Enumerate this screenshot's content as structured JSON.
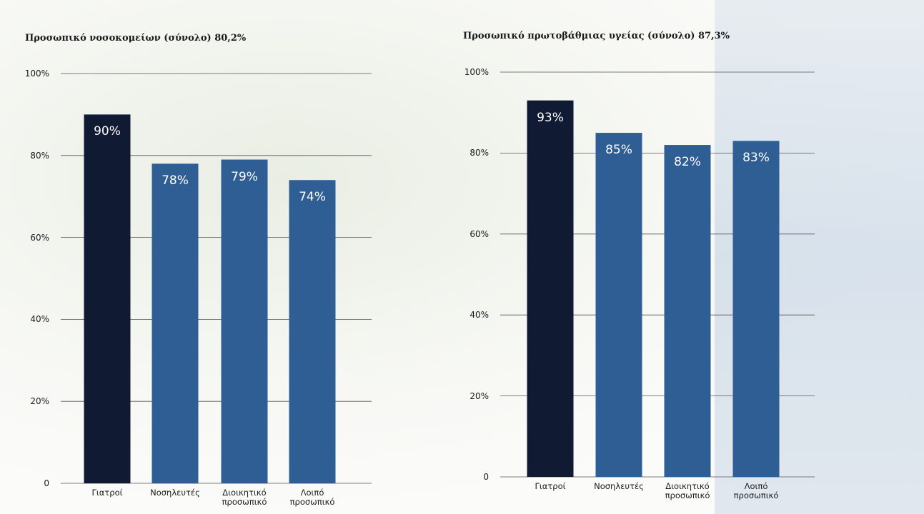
{
  "chart_data": [
    {
      "type": "bar",
      "title": "Προσωπικό νοσοκομείων (σύνολο) 80,2%",
      "categories": [
        "Γιατροί",
        "Νοσηλευτές",
        "Διοικητικό προσωπικό",
        "Λοιπό προσωπικό"
      ],
      "values": [
        90,
        78,
        79,
        74
      ],
      "value_labels": [
        "90%",
        "78%",
        "79%",
        "74%"
      ],
      "colors": [
        "#101a33",
        "#2f5e95",
        "#2f5e95",
        "#2f5e95"
      ],
      "ylim": [
        0,
        100
      ],
      "yticks": [
        0,
        {
          "value": 20,
          "label": "20%"
        },
        {
          "value": 40,
          "label": "40%"
        },
        {
          "value": 60,
          "label": "60%"
        },
        {
          "value": 80,
          "label": "80%"
        },
        {
          "value": 100,
          "label": "100%"
        }
      ],
      "grid": true
    },
    {
      "type": "bar",
      "title": "Προσωπικό πρωτοβάθμιας υγείας (σύνολο) 87,3%",
      "categories": [
        "Γιατροί",
        "Νοσηλευτές",
        "Διοικητικό προσωπικό",
        "Λοιπό προσωπικό"
      ],
      "values": [
        93,
        85,
        82,
        83
      ],
      "value_labels": [
        "93%",
        "85%",
        "82%",
        "83%"
      ],
      "colors": [
        "#101a33",
        "#2f5e95",
        "#2f5e95",
        "#2f5e95"
      ],
      "ylim": [
        0,
        100
      ],
      "yticks": [
        0,
        {
          "value": 20,
          "label": "20%"
        },
        {
          "value": 40,
          "label": "40%"
        },
        {
          "value": 60,
          "label": "60%"
        },
        {
          "value": 80,
          "label": "80%"
        },
        {
          "value": 100,
          "label": "100%"
        }
      ],
      "grid": true
    }
  ]
}
